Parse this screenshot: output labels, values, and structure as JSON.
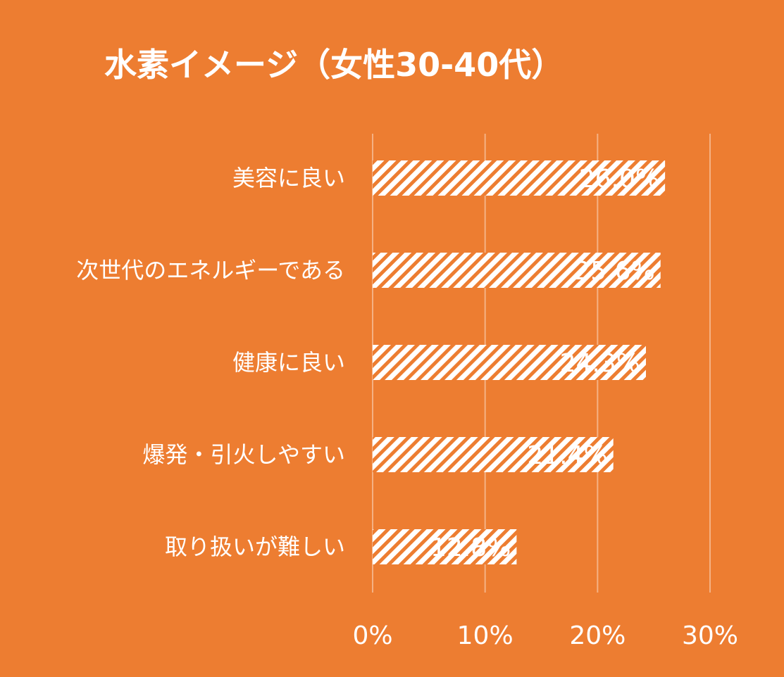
{
  "chart_data": {
    "type": "bar",
    "orientation": "horizontal",
    "title": "水素イメージ（女性30-40代）",
    "categories": [
      "美容に良い",
      "次世代のエネルギーである",
      "健康に良い",
      "爆発・引火しやすい",
      "取り扱いが難しい"
    ],
    "values": [
      26.0,
      25.6,
      24.3,
      21.4,
      12.8
    ],
    "data_labels": [
      "26.0%",
      "25.6%",
      "24.3%",
      "21.4%",
      "12.8%"
    ],
    "xlim": [
      0,
      30
    ],
    "ticks": [
      0,
      10,
      20,
      30
    ],
    "tick_labels": [
      "0%",
      "10%",
      "20%",
      "30%"
    ],
    "grid": true,
    "legend": "none"
  },
  "colors": {
    "background": "#ED7D31",
    "bar_pattern": "#FFFFFF",
    "gridline": "#F5B183",
    "text": "#FFFFFF"
  }
}
